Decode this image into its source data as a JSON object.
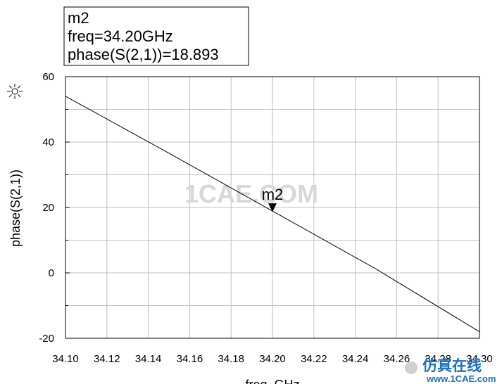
{
  "chart_data": {
    "type": "line",
    "xlabel": "freq, GHz",
    "ylabel": "phase(S(2,1))",
    "xlim": [
      34.1,
      34.3
    ],
    "ylim": [
      -20,
      60
    ],
    "x_ticks": [
      "34.10",
      "34.12",
      "34.14",
      "34.16",
      "34.18",
      "34.20",
      "34.22",
      "34.24",
      "34.26",
      "34.28",
      "34.30"
    ],
    "y_ticks": [
      "60",
      "40",
      "20",
      "0",
      "-20"
    ],
    "grid": true,
    "series": [
      {
        "x": [
          34.1,
          34.15,
          34.2,
          34.25,
          34.3
        ],
        "y": [
          54.0,
          36.6,
          18.893,
          1.2,
          -18.0
        ]
      }
    ],
    "marker": {
      "name": "m2",
      "x": 34.2,
      "y": 18.893,
      "box_lines": [
        "m2",
        "freq=34.20GHz",
        "phase(S(2,1))=18.893"
      ]
    }
  },
  "watermark": "1CAE.COM",
  "brand": {
    "title": "仿真在线",
    "url": "www.1CAE.com"
  },
  "colors": {
    "line": "#000000",
    "grid": "#bfbfbf",
    "watermark": "#d8d8d8",
    "brand": "#1a6fc4"
  }
}
